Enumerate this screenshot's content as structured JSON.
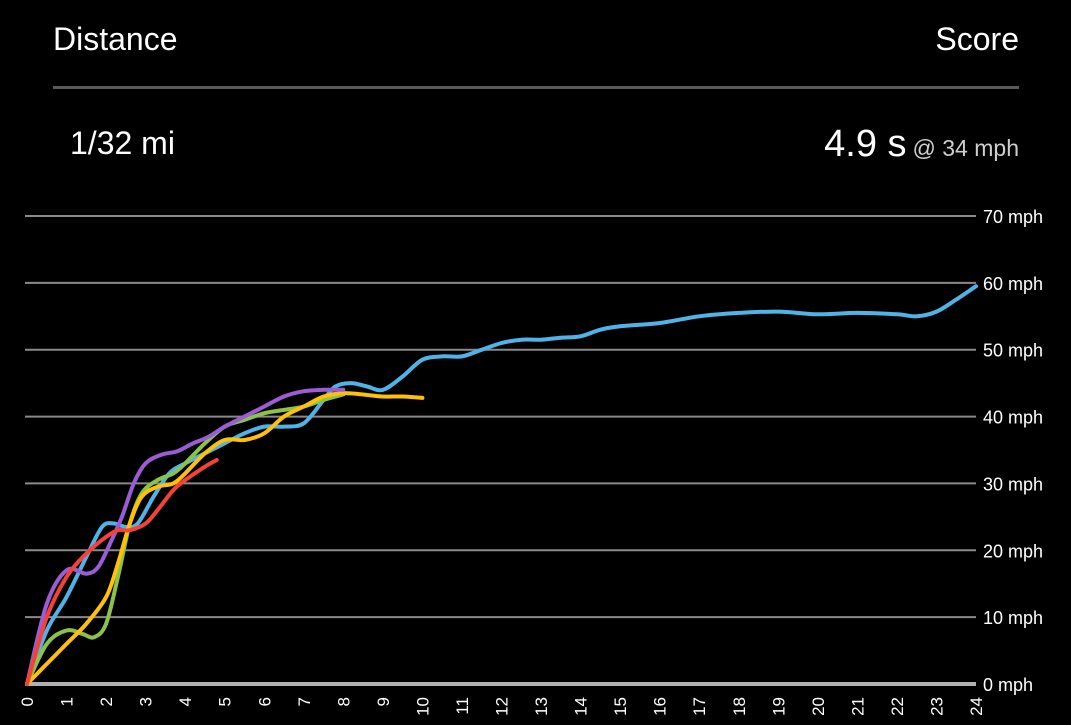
{
  "header": {
    "distance_label": "Distance",
    "score_label": "Score"
  },
  "summary": {
    "distance": "1/32 mi",
    "score_time": "4.9 s",
    "score_speed": "@ 34 mph"
  },
  "colors": {
    "background": "#000000",
    "grid": "#8a8a8a",
    "divider": "#5a5a5a"
  },
  "chart_data": {
    "type": "line",
    "title": "",
    "xlabel": "",
    "ylabel": "",
    "xlim": [
      0,
      24
    ],
    "ylim": [
      0,
      70
    ],
    "x_ticks": [
      0,
      1,
      2,
      3,
      4,
      5,
      6,
      7,
      8,
      9,
      10,
      11,
      12,
      13,
      14,
      15,
      16,
      17,
      18,
      19,
      20,
      21,
      22,
      23,
      24
    ],
    "y_ticks": [
      {
        "value": 0,
        "label": "0 mph"
      },
      {
        "value": 10,
        "label": "10 mph"
      },
      {
        "value": 20,
        "label": "20 mph"
      },
      {
        "value": 30,
        "label": "30 mph"
      },
      {
        "value": 40,
        "label": "40 mph"
      },
      {
        "value": 50,
        "label": "50 mph"
      },
      {
        "value": 60,
        "label": "60 mph"
      },
      {
        "value": 70,
        "label": "70 mph"
      }
    ],
    "grid": true,
    "series": [
      {
        "color": "#4fb3e8",
        "points": [
          [
            0,
            0
          ],
          [
            0.5,
            8
          ],
          [
            1,
            13
          ],
          [
            1.5,
            19
          ],
          [
            1.9,
            23.5
          ],
          [
            2.2,
            24
          ],
          [
            2.5,
            23.5
          ],
          [
            2.8,
            24
          ],
          [
            3.2,
            28
          ],
          [
            3.6,
            31.5
          ],
          [
            4,
            33
          ],
          [
            4.5,
            34.5
          ],
          [
            5,
            36
          ],
          [
            5.5,
            37.5
          ],
          [
            6,
            38.5
          ],
          [
            6.5,
            38.5
          ],
          [
            7,
            39
          ],
          [
            7.5,
            42.5
          ],
          [
            7.8,
            44.5
          ],
          [
            8.2,
            45
          ],
          [
            8.6,
            44.5
          ],
          [
            9,
            44
          ],
          [
            9.5,
            46
          ],
          [
            10,
            48.5
          ],
          [
            10.5,
            49
          ],
          [
            11,
            49
          ],
          [
            11.5,
            50
          ],
          [
            12,
            51
          ],
          [
            12.5,
            51.5
          ],
          [
            13,
            51.5
          ],
          [
            13.5,
            51.8
          ],
          [
            14,
            52
          ],
          [
            14.5,
            53
          ],
          [
            15,
            53.5
          ],
          [
            16,
            54
          ],
          [
            17,
            55
          ],
          [
            18,
            55.5
          ],
          [
            19,
            55.7
          ],
          [
            20,
            55.3
          ],
          [
            21,
            55.5
          ],
          [
            22,
            55.3
          ],
          [
            22.5,
            55
          ],
          [
            23,
            55.7
          ],
          [
            23.5,
            57.5
          ],
          [
            24,
            59.5
          ]
        ]
      },
      {
        "color": "#8bc34a",
        "points": [
          [
            0,
            0
          ],
          [
            0.5,
            6
          ],
          [
            1,
            8
          ],
          [
            1.4,
            7.5
          ],
          [
            1.7,
            7
          ],
          [
            2,
            9
          ],
          [
            2.3,
            16
          ],
          [
            2.6,
            24
          ],
          [
            2.9,
            28.5
          ],
          [
            3.3,
            30.5
          ],
          [
            3.7,
            31.5
          ],
          [
            4,
            33
          ],
          [
            4.5,
            36
          ],
          [
            5,
            38.5
          ],
          [
            5.5,
            39.5
          ],
          [
            6,
            40.5
          ],
          [
            6.5,
            41
          ],
          [
            7,
            41.5
          ],
          [
            7.5,
            42.5
          ],
          [
            8,
            43.3
          ]
        ]
      },
      {
        "color": "#ffc107",
        "points": [
          [
            0,
            0
          ],
          [
            0.5,
            3
          ],
          [
            1,
            6
          ],
          [
            1.5,
            9
          ],
          [
            2,
            13
          ],
          [
            2.3,
            18
          ],
          [
            2.6,
            24
          ],
          [
            2.9,
            28
          ],
          [
            3.3,
            29.5
          ],
          [
            3.7,
            30
          ],
          [
            4,
            31.5
          ],
          [
            4.5,
            34.5
          ],
          [
            5,
            36.5
          ],
          [
            5.5,
            36.5
          ],
          [
            6,
            37.5
          ],
          [
            6.5,
            40
          ],
          [
            7,
            41.5
          ],
          [
            7.5,
            43
          ],
          [
            8,
            43.5
          ],
          [
            8.5,
            43.3
          ],
          [
            9,
            43
          ],
          [
            9.5,
            43
          ],
          [
            10,
            42.8
          ]
        ]
      },
      {
        "color": "#9c5cd6",
        "points": [
          [
            0,
            0
          ],
          [
            0.5,
            12
          ],
          [
            1,
            17
          ],
          [
            1.5,
            16.5
          ],
          [
            1.8,
            17.5
          ],
          [
            2.1,
            21
          ],
          [
            2.4,
            25
          ],
          [
            2.7,
            30
          ],
          [
            3,
            33
          ],
          [
            3.4,
            34.3
          ],
          [
            3.8,
            34.8
          ],
          [
            4.2,
            36
          ],
          [
            4.6,
            37
          ],
          [
            5,
            38.5
          ],
          [
            5.5,
            40
          ],
          [
            6,
            41.5
          ],
          [
            6.5,
            43
          ],
          [
            7,
            43.8
          ],
          [
            7.5,
            44
          ],
          [
            8,
            44
          ]
        ]
      },
      {
        "color": "#f44336",
        "points": [
          [
            0,
            0
          ],
          [
            0.5,
            10
          ],
          [
            1,
            16
          ],
          [
            1.5,
            19.5
          ],
          [
            2,
            22
          ],
          [
            2.3,
            23
          ],
          [
            2.6,
            23
          ],
          [
            3,
            24
          ],
          [
            3.3,
            26
          ],
          [
            3.7,
            29
          ],
          [
            4,
            30.5
          ],
          [
            4.5,
            32.5
          ],
          [
            4.8,
            33.5
          ]
        ]
      }
    ]
  }
}
